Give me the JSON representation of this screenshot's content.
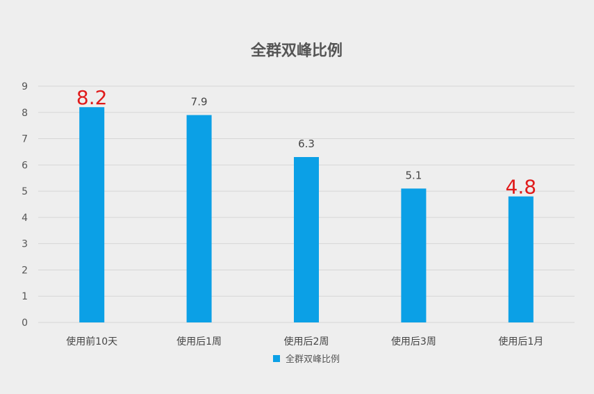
{
  "chart_data": {
    "type": "bar",
    "title": "全群双峰比例",
    "xlabel": "",
    "ylabel": "",
    "ylim": [
      0,
      9
    ],
    "yticks": [
      0,
      1,
      2,
      3,
      4,
      5,
      6,
      7,
      8,
      9
    ],
    "grid": true,
    "categories": [
      "使用前10天",
      "使用后1周",
      "使用后2周",
      "使用后3周",
      "使用后1月"
    ],
    "series": [
      {
        "name": "全群双峰比例",
        "values": [
          8.2,
          7.9,
          6.3,
          5.1,
          4.8
        ],
        "data_labels": [
          "8.2",
          "7.9",
          "6.3",
          "5.1",
          "4.8"
        ],
        "highlighted": [
          true,
          false,
          false,
          false,
          true
        ]
      }
    ],
    "legend": "bottom-center",
    "colors": {
      "bar": "#0ba0e6",
      "highlight_label": "#e01a1a"
    }
  }
}
